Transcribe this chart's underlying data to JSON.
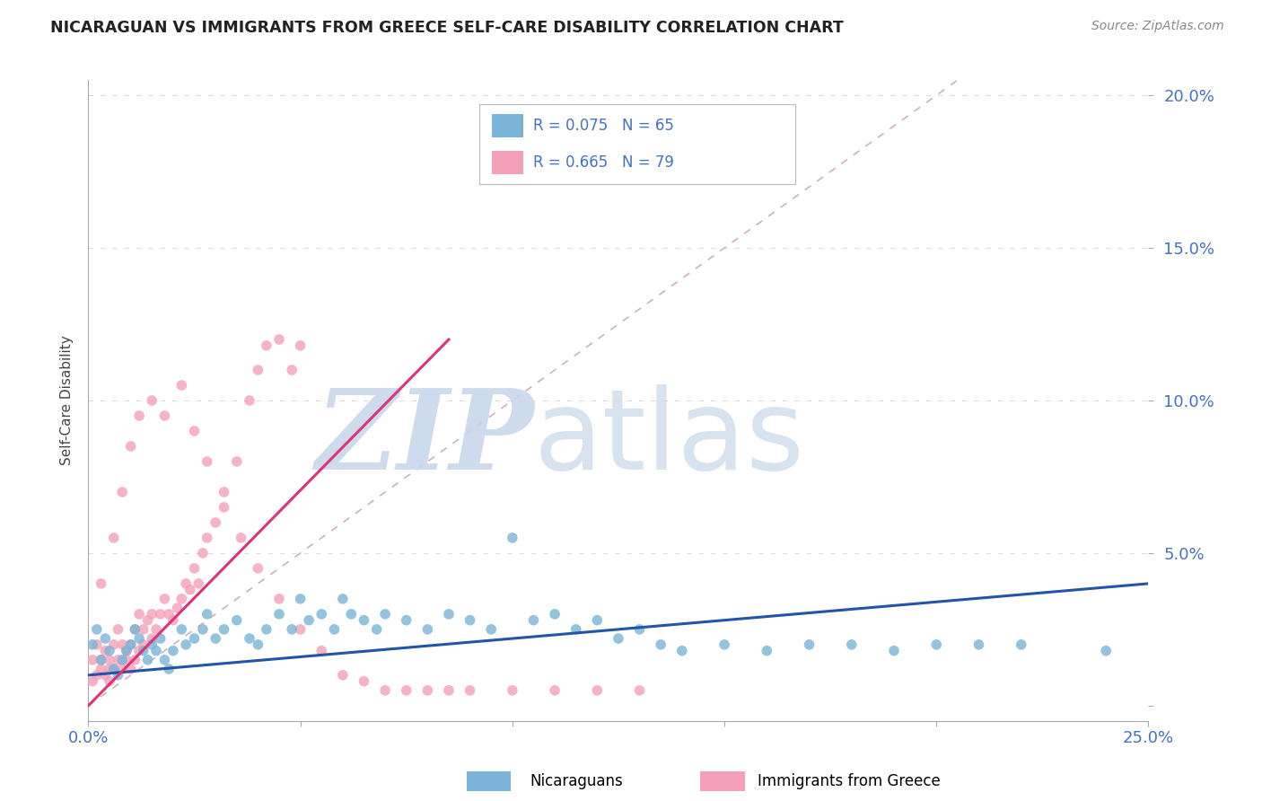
{
  "title": "NICARAGUAN VS IMMIGRANTS FROM GREECE SELF-CARE DISABILITY CORRELATION CHART",
  "source": "Source: ZipAtlas.com",
  "ylabel": "Self-Care Disability",
  "xlim": [
    0.0,
    0.25
  ],
  "ylim": [
    -0.005,
    0.205
  ],
  "blue_color": "#7ab4d8",
  "pink_color": "#f4a0b8",
  "blue_line_color": "#2255aa",
  "pink_line_color": "#dd3377",
  "ref_line_color": "#d0b0b8",
  "grid_color": "#dddddd",
  "axis_color": "#4472c4",
  "title_color": "#222222",
  "background_color": "#ffffff",
  "watermark_zip_color": "#c8d8ea",
  "watermark_atlas_color": "#c8d8ea",
  "legend_blue_text": "R = 0.075   N = 65",
  "legend_pink_text": "R = 0.665   N = 79",
  "footer_blue_label": "Nicaraguans",
  "footer_pink_label": "Immigrants from Greece",
  "blue_scatter_x": [
    0.001,
    0.002,
    0.003,
    0.004,
    0.005,
    0.006,
    0.007,
    0.008,
    0.009,
    0.01,
    0.011,
    0.012,
    0.013,
    0.014,
    0.015,
    0.016,
    0.017,
    0.018,
    0.019,
    0.02,
    0.022,
    0.023,
    0.025,
    0.027,
    0.028,
    0.03,
    0.032,
    0.035,
    0.038,
    0.04,
    0.042,
    0.045,
    0.048,
    0.05,
    0.052,
    0.055,
    0.058,
    0.06,
    0.062,
    0.065,
    0.068,
    0.07,
    0.075,
    0.08,
    0.085,
    0.09,
    0.095,
    0.1,
    0.105,
    0.11,
    0.115,
    0.12,
    0.125,
    0.13,
    0.135,
    0.14,
    0.15,
    0.16,
    0.17,
    0.18,
    0.19,
    0.2,
    0.21,
    0.22,
    0.24
  ],
  "blue_scatter_y": [
    0.02,
    0.025,
    0.015,
    0.022,
    0.018,
    0.012,
    0.01,
    0.015,
    0.018,
    0.02,
    0.025,
    0.022,
    0.018,
    0.015,
    0.02,
    0.018,
    0.022,
    0.015,
    0.012,
    0.018,
    0.025,
    0.02,
    0.022,
    0.025,
    0.03,
    0.022,
    0.025,
    0.028,
    0.022,
    0.02,
    0.025,
    0.03,
    0.025,
    0.035,
    0.028,
    0.03,
    0.025,
    0.035,
    0.03,
    0.028,
    0.025,
    0.03,
    0.028,
    0.025,
    0.03,
    0.028,
    0.025,
    0.055,
    0.028,
    0.03,
    0.025,
    0.028,
    0.022,
    0.025,
    0.02,
    0.018,
    0.02,
    0.018,
    0.02,
    0.02,
    0.018,
    0.02,
    0.02,
    0.02,
    0.018
  ],
  "pink_scatter_x": [
    0.001,
    0.001,
    0.002,
    0.002,
    0.003,
    0.003,
    0.004,
    0.004,
    0.005,
    0.005,
    0.005,
    0.006,
    0.006,
    0.007,
    0.007,
    0.008,
    0.008,
    0.009,
    0.009,
    0.01,
    0.01,
    0.011,
    0.011,
    0.012,
    0.012,
    0.013,
    0.013,
    0.014,
    0.015,
    0.015,
    0.016,
    0.017,
    0.018,
    0.019,
    0.02,
    0.021,
    0.022,
    0.023,
    0.024,
    0.025,
    0.026,
    0.027,
    0.028,
    0.03,
    0.032,
    0.035,
    0.038,
    0.04,
    0.042,
    0.045,
    0.048,
    0.05,
    0.003,
    0.006,
    0.008,
    0.01,
    0.012,
    0.015,
    0.018,
    0.022,
    0.025,
    0.028,
    0.032,
    0.036,
    0.04,
    0.045,
    0.05,
    0.055,
    0.06,
    0.065,
    0.07,
    0.075,
    0.08,
    0.085,
    0.09,
    0.1,
    0.11,
    0.12,
    0.13
  ],
  "pink_scatter_y": [
    0.008,
    0.015,
    0.01,
    0.02,
    0.012,
    0.015,
    0.01,
    0.018,
    0.012,
    0.008,
    0.015,
    0.012,
    0.02,
    0.015,
    0.025,
    0.012,
    0.02,
    0.015,
    0.018,
    0.012,
    0.02,
    0.015,
    0.025,
    0.018,
    0.03,
    0.02,
    0.025,
    0.028,
    0.022,
    0.03,
    0.025,
    0.03,
    0.035,
    0.03,
    0.028,
    0.032,
    0.035,
    0.04,
    0.038,
    0.045,
    0.04,
    0.05,
    0.055,
    0.06,
    0.07,
    0.08,
    0.1,
    0.11,
    0.118,
    0.12,
    0.11,
    0.118,
    0.04,
    0.055,
    0.07,
    0.085,
    0.095,
    0.1,
    0.095,
    0.105,
    0.09,
    0.08,
    0.065,
    0.055,
    0.045,
    0.035,
    0.025,
    0.018,
    0.01,
    0.008,
    0.005,
    0.005,
    0.005,
    0.005,
    0.005,
    0.005,
    0.005,
    0.005,
    0.005
  ],
  "blue_trend_x": [
    0.0,
    0.25
  ],
  "blue_trend_y": [
    0.01,
    0.04
  ],
  "pink_trend_x": [
    0.0,
    0.085
  ],
  "pink_trend_y": [
    0.0,
    0.12
  ]
}
